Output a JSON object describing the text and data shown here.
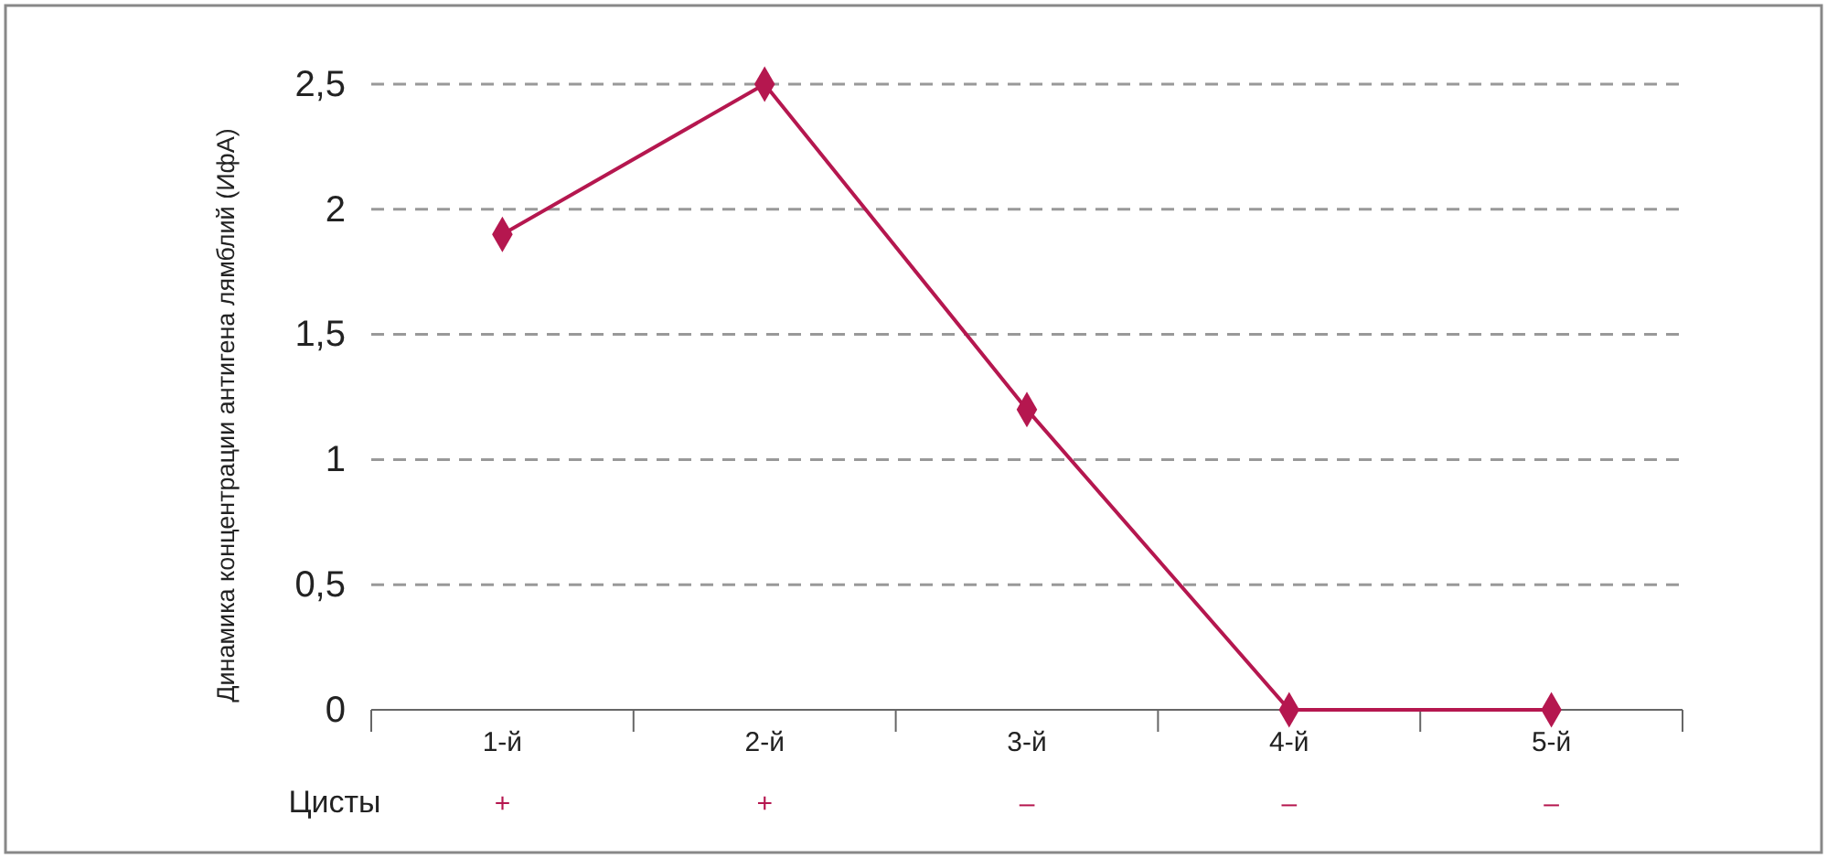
{
  "chart_data": {
    "type": "line",
    "ylabel": "Динамика концентрации антигена лямблий (ИфА)",
    "categories": [
      "1-й",
      "2-й",
      "3-й",
      "4-й",
      "5-й"
    ],
    "series": [
      {
        "color": "#b5174f",
        "values": [
          1.9,
          2.5,
          1.2,
          0,
          0
        ]
      }
    ],
    "ylim": [
      0,
      2.5
    ],
    "yticks": [
      0,
      {
        "value": 0.5,
        "label": "0,5"
      },
      1,
      {
        "value": 1.5,
        "label": "1,5"
      },
      2,
      {
        "value": 2.5,
        "label": "2,5"
      }
    ],
    "grid": "y",
    "marker": "diamond",
    "line_style": "solid",
    "annotations": [
      "Цисты",
      "+",
      "+",
      "–",
      "–",
      "–"
    ]
  }
}
